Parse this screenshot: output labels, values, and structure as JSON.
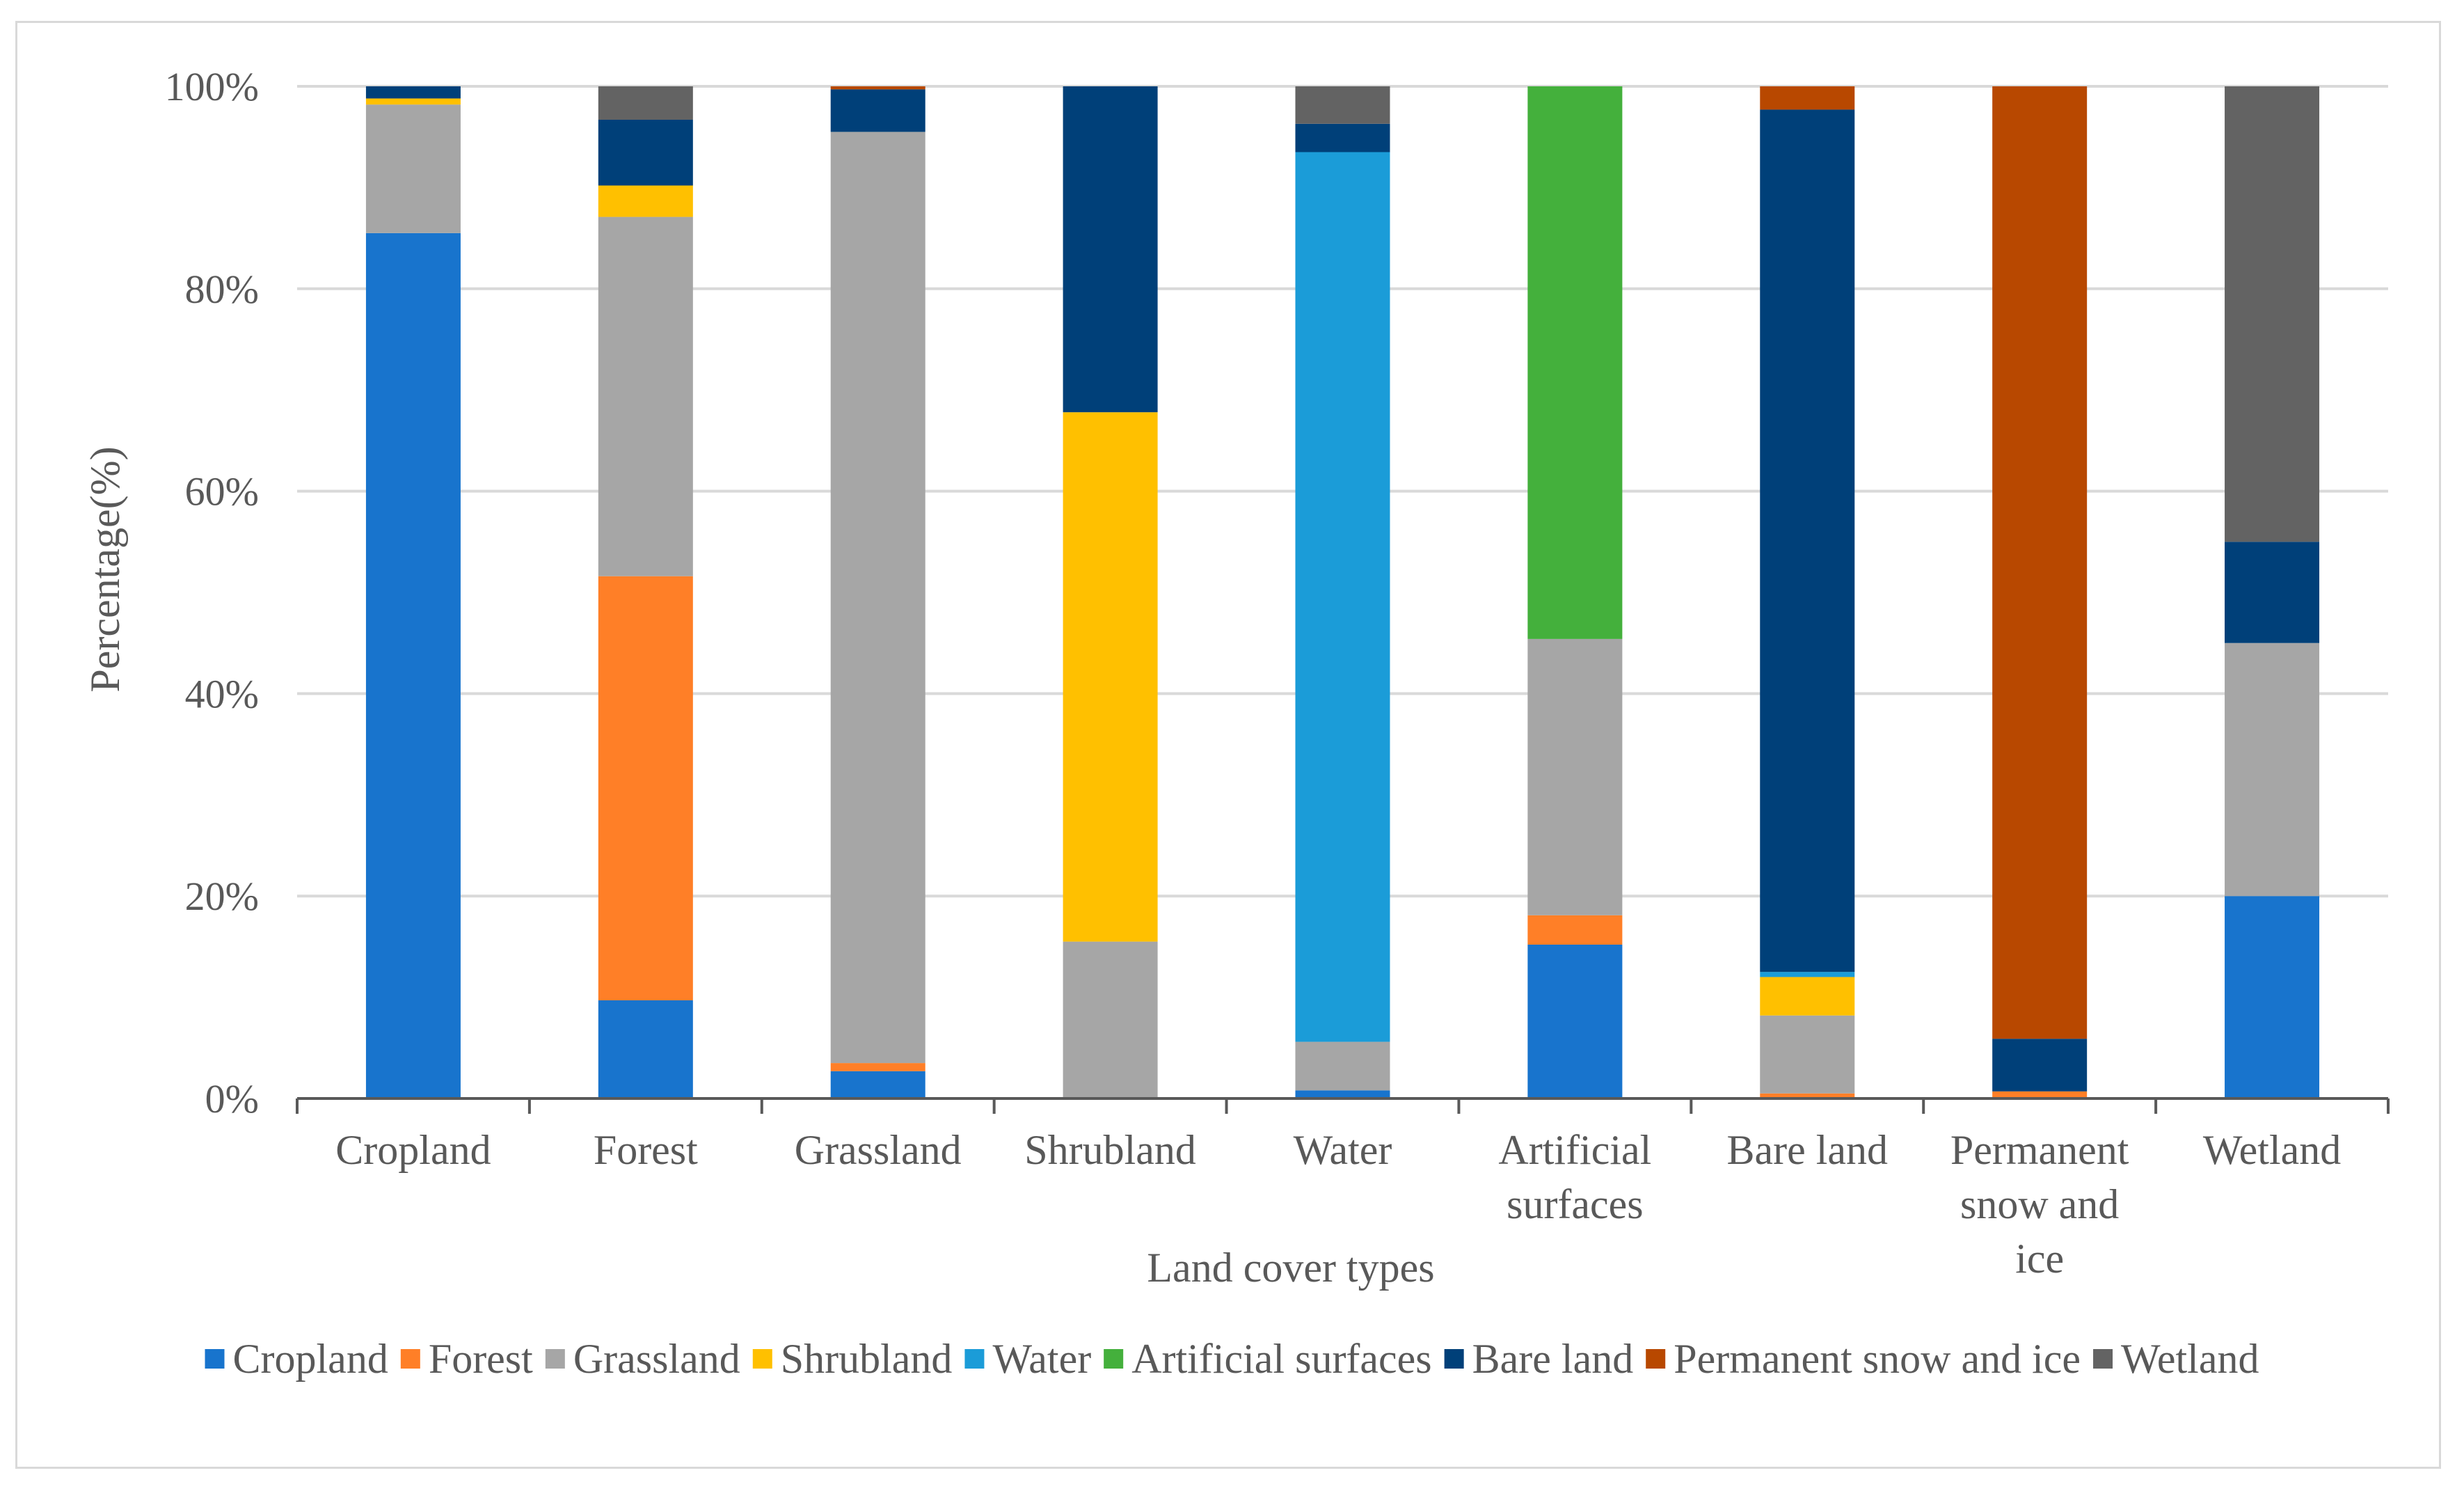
{
  "chart_data": {
    "type": "stacked-bar-percent",
    "title": "",
    "xlabel": "Land cover types",
    "ylabel": "Percentage(%)",
    "ylim": [
      0,
      100
    ],
    "y_ticks": [
      "0%",
      "20%",
      "40%",
      "60%",
      "80%",
      "100%"
    ],
    "grid": "horizontal",
    "legend_position": "bottom",
    "categories": [
      [
        "Cropland"
      ],
      [
        "Forest"
      ],
      [
        "Grassland"
      ],
      [
        "Shrubland"
      ],
      [
        "Water"
      ],
      [
        "Artificial",
        "surfaces"
      ],
      [
        "Bare land"
      ],
      [
        "Permanent",
        "snow and",
        "ice"
      ],
      [
        "Wetland"
      ]
    ],
    "series": [
      {
        "name": "Cropland",
        "color": "#1874cd",
        "values": [
          85.5,
          9.7,
          2.7,
          0,
          0.8,
          15.2,
          0,
          0,
          20.0
        ]
      },
      {
        "name": "Forest",
        "color": "#ff7f27",
        "values": [
          0,
          41.9,
          0.8,
          0,
          0,
          2.9,
          0.5,
          0.7,
          0
        ]
      },
      {
        "name": "Grassland",
        "color": "#a6a6a6",
        "values": [
          12.7,
          35.5,
          92.0,
          15.5,
          4.8,
          27.3,
          7.7,
          0,
          25.0
        ]
      },
      {
        "name": "Shrubland",
        "color": "#ffc000",
        "values": [
          0.6,
          3.1,
          0,
          52.3,
          0,
          0,
          3.8,
          0,
          0
        ]
      },
      {
        "name": "Water",
        "color": "#1b9cd8",
        "values": [
          0,
          0,
          0,
          0,
          87.9,
          0,
          0.5,
          0,
          0
        ]
      },
      {
        "name": "Artificial surfaces",
        "color": "#44b03c",
        "values": [
          0,
          0,
          0,
          0,
          0,
          54.6,
          0,
          0,
          0
        ]
      },
      {
        "name": "Bare land",
        "color": "#004079",
        "values": [
          1.2,
          6.5,
          4.2,
          32.2,
          2.8,
          0,
          85.2,
          5.2,
          10.0
        ]
      },
      {
        "name": "Permanent snow and ice",
        "color": "#b84800",
        "values": [
          0,
          0,
          0.3,
          0,
          0,
          0,
          2.3,
          94.1,
          0
        ]
      },
      {
        "name": "Wetland",
        "color": "#636363",
        "values": [
          0,
          3.3,
          0,
          0,
          3.7,
          0,
          0,
          0,
          45.0
        ]
      }
    ]
  }
}
